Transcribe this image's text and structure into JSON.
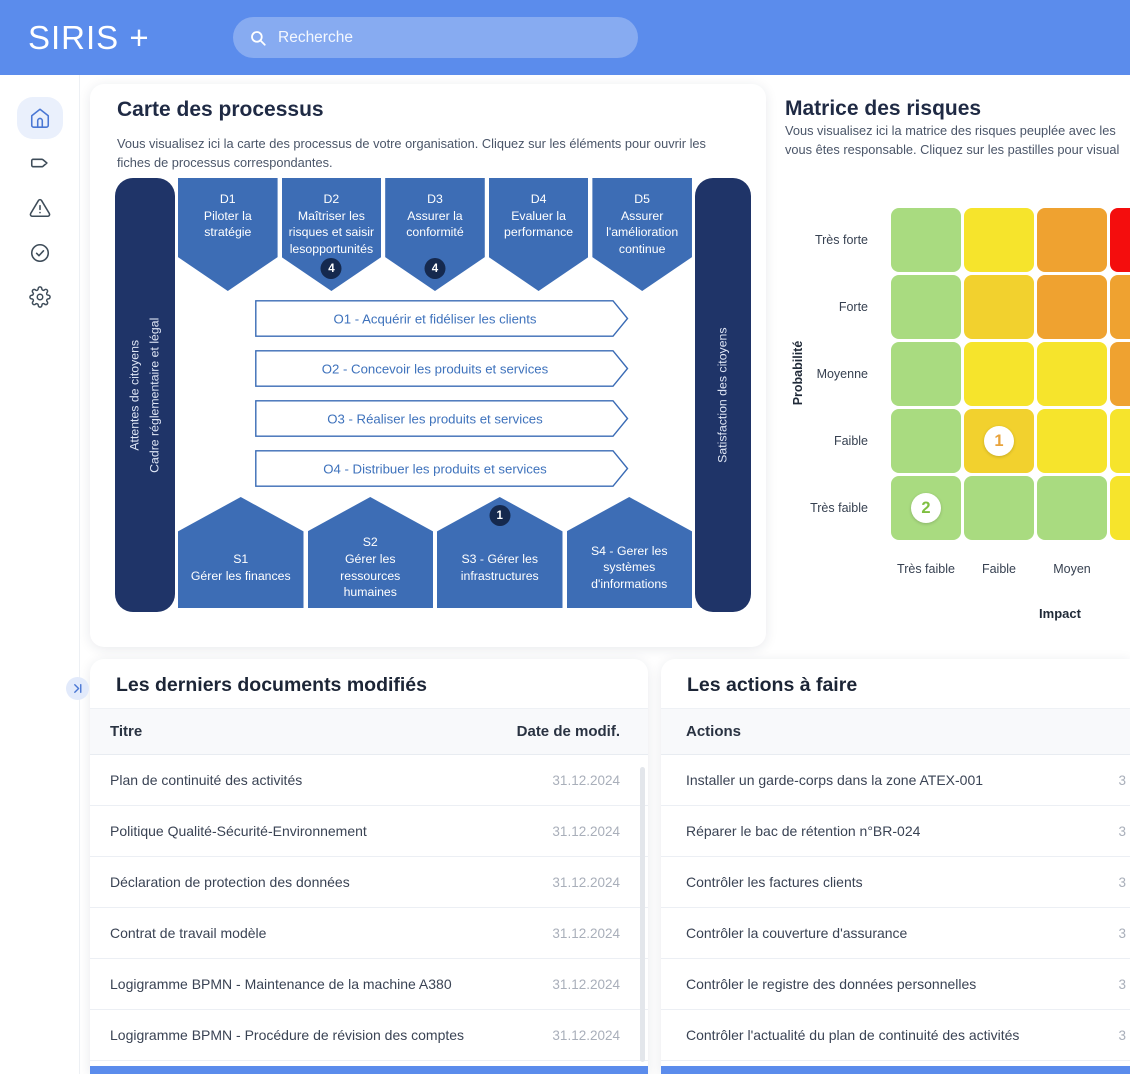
{
  "header": {
    "logo": "SIRIS +",
    "search_placeholder": "Recherche"
  },
  "sidebar": {
    "icons": [
      "home-icon",
      "tag-icon",
      "alert-triangle-icon",
      "check-circle-icon",
      "settings-icon"
    ],
    "active_icon": "home-icon"
  },
  "process_card": {
    "title": "Carte des processus",
    "description": "Vous visualisez ici la carte des processus de votre organisation. Cliquez sur les éléments pour ouvrir les fiches de processus correspondantes.",
    "left_bar": "Attentes de citoyens\nCadre réglementaire et légal",
    "right_bar": "Satisfaction des citoyens",
    "direction_processes": [
      {
        "id": "D1",
        "text": "D1\nPiloter la stratégie",
        "badge": null
      },
      {
        "id": "D2",
        "text": "D2\nMaîtriser les risques et saisir lesopportunités",
        "badge": "4"
      },
      {
        "id": "D3",
        "text": "D3\nAssurer la conformité",
        "badge": "4"
      },
      {
        "id": "D4",
        "text": "D4\nEvaluer la performance",
        "badge": null
      },
      {
        "id": "D5",
        "text": "D5\nAssurer l'amélioration continue",
        "badge": null
      }
    ],
    "operational_processes": [
      {
        "id": "O1",
        "text": "O1 - Acquérir et fidéliser les clients"
      },
      {
        "id": "O2",
        "text": "O2 - Concevoir les produits et services"
      },
      {
        "id": "O3",
        "text": "O3 - Réaliser les produits et services"
      },
      {
        "id": "O4",
        "text": "O4 - Distribuer les produits et services"
      }
    ],
    "support_processes": [
      {
        "id": "S1",
        "text": "S1\nGérer les finances",
        "badge": null
      },
      {
        "id": "S2",
        "text": "S2\nGérer les ressources humaines",
        "badge": null
      },
      {
        "id": "S3",
        "text": "S3 - Gérer les infrastructures",
        "badge": "1"
      },
      {
        "id": "S4",
        "text": "S4 - Gerer les systèmes d'informations",
        "badge": null
      }
    ]
  },
  "risk_matrix": {
    "title": "Matrice des risques",
    "description": "Vous visualisez ici la matrice des risques peuplée avec les\nvous êtes responsable. Cliquez sur les pastilles pour visual",
    "y_axis_label": "Probabilité",
    "x_axis_label": "Impact",
    "row_labels": [
      "Très forte",
      "Forte",
      "Moyenne",
      "Faible",
      "Très faible"
    ],
    "col_labels": [
      "Très faible",
      "Faible",
      "Moyen",
      ""
    ],
    "cells": [
      [
        "green",
        "yellow",
        "orange",
        "red"
      ],
      [
        "green",
        "gold",
        "orange",
        "orange"
      ],
      [
        "green",
        "yellow",
        "yellow",
        "orange"
      ],
      [
        "green",
        "gold",
        "yellow",
        "yellow"
      ],
      [
        "green",
        "green",
        "green",
        "yellow"
      ]
    ],
    "cell_colors": {
      "green": "#A9DB80",
      "yellow": "#F6E42C",
      "gold": "#F2D12E",
      "orange": "#EFA230",
      "red": "#F40D0D"
    },
    "badges": [
      {
        "row": 3,
        "col": 1,
        "label": "1",
        "color": "#E8A33C"
      },
      {
        "row": 4,
        "col": 0,
        "label": "2",
        "color": "#7FBF41"
      }
    ]
  },
  "documents": {
    "title": "Les derniers documents modifiés",
    "columns": [
      "Titre",
      "Date de modif."
    ],
    "rows": [
      {
        "title": "Plan de continuité des activités",
        "date": "31.12.2024"
      },
      {
        "title": "Politique Qualité-Sécurité-Environnement",
        "date": "31.12.2024"
      },
      {
        "title": "Déclaration de protection des données",
        "date": "31.12.2024"
      },
      {
        "title": "Contrat de travail modèle",
        "date": "31.12.2024"
      },
      {
        "title": "Logigramme BPMN - Maintenance de la machine A380",
        "date": "31.12.2024"
      },
      {
        "title": "Logigramme BPMN - Procédure de révision des comptes",
        "date": "31.12.2024"
      }
    ]
  },
  "actions": {
    "title": "Les actions à faire",
    "columns": [
      "Actions"
    ],
    "rows": [
      {
        "title": "Installer un garde-corps dans la zone ATEX-001",
        "date": "3"
      },
      {
        "title": "Réparer le bac de rétention n°BR-024",
        "date": "3"
      },
      {
        "title": "Contrôler les factures clients",
        "date": "3"
      },
      {
        "title": "Contrôler la couverture d'assurance",
        "date": "3"
      },
      {
        "title": "Contrôler le registre des données personnelles",
        "date": "3"
      },
      {
        "title": "Contrôler l'actualité du plan de continuité des activités",
        "date": "3"
      }
    ]
  },
  "colors": {
    "header_blue": "#5B8CEC",
    "process_blue": "#3D6DB5",
    "navy_bar": "#1F3468",
    "badge_navy": "#15294E",
    "outline_blue": "#3A6BB5"
  }
}
